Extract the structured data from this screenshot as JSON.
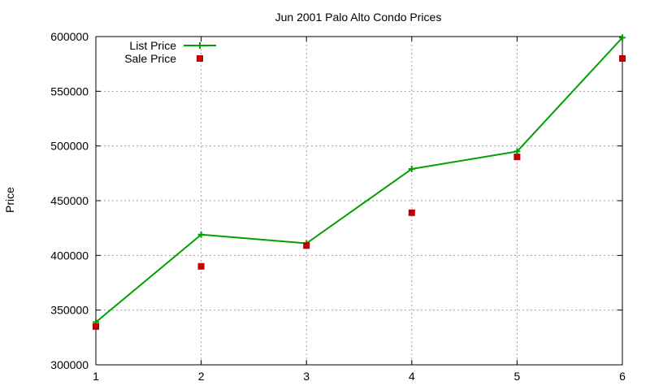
{
  "chart_data": {
    "type": "line",
    "title": "Jun 2001 Palo Alto Condo Prices",
    "xlabel": "",
    "ylabel": "Price",
    "x": [
      1,
      2,
      3,
      4,
      5,
      6
    ],
    "xlim": [
      1,
      6
    ],
    "ylim": [
      300000,
      600000
    ],
    "x_ticks": [
      "1",
      "2",
      "3",
      "4",
      "5",
      "6"
    ],
    "y_ticks": [
      "300000",
      "350000",
      "400000",
      "450000",
      "500000",
      "550000",
      "600000"
    ],
    "grid": true,
    "legend_position": "top-left",
    "series": [
      {
        "name": "List Price",
        "style": "line-points",
        "marker": "plus",
        "color": "#00a000",
        "values": [
          339000,
          419000,
          411000,
          479000,
          495000,
          599000
        ]
      },
      {
        "name": "Sale Price",
        "style": "points",
        "marker": "square",
        "color": "#c00000",
        "values": [
          335000,
          390000,
          409000,
          439000,
          490000,
          580000
        ]
      }
    ]
  }
}
